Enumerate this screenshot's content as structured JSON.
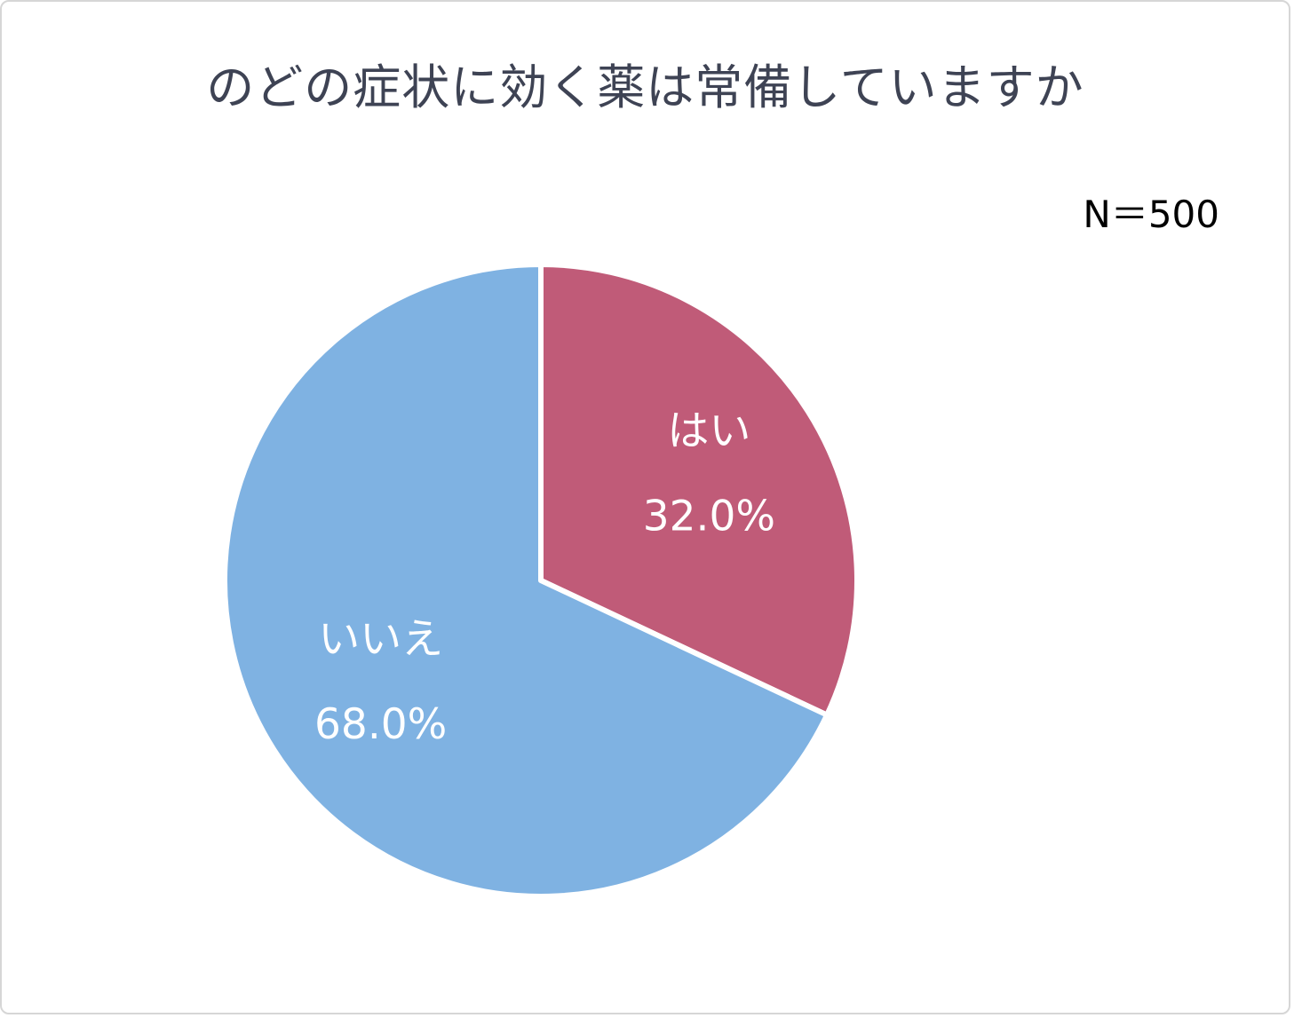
{
  "chart_data": {
    "type": "pie",
    "title": "のどの症状に効く薬は常備していますか",
    "annotation": "N＝500",
    "categories": [
      "はい",
      "いいえ"
    ],
    "values": [
      32.0,
      68.0
    ],
    "value_labels": [
      "32.0%",
      "68.0%"
    ],
    "colors": [
      "#c05b78",
      "#7fb2e2"
    ],
    "start_angle_deg": 0,
    "direction": "clockwise",
    "legend": "none",
    "data_labels": "inside",
    "label_text_color": "#ffffff",
    "slice_border_color": "#ffffff"
  }
}
